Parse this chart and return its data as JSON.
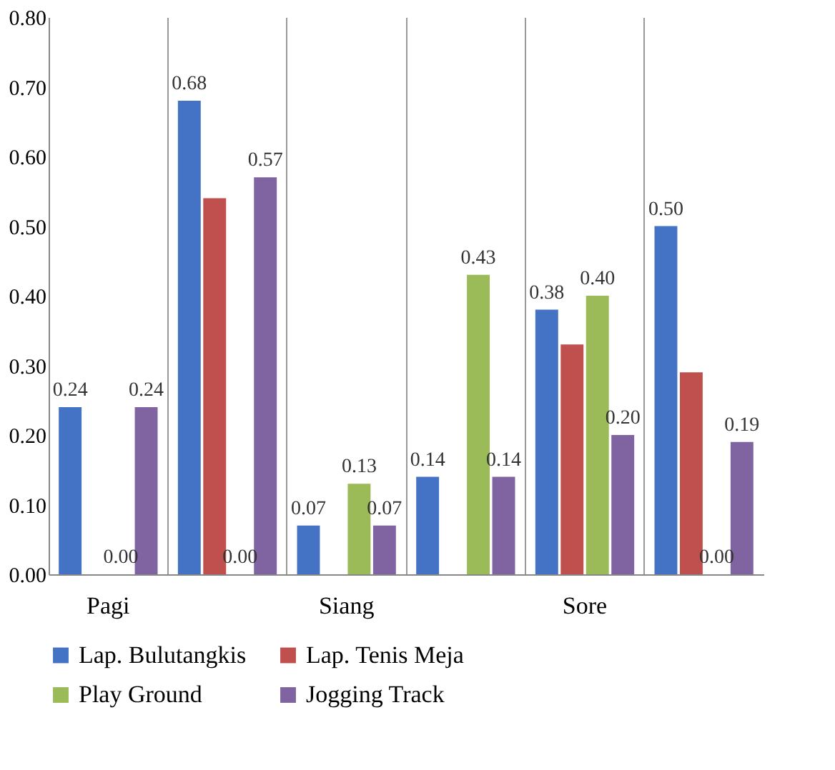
{
  "chart_data": {
    "type": "bar",
    "categories": [
      "Pagi",
      null,
      "Siang",
      null,
      "Sore",
      null
    ],
    "series": [
      {
        "name": "Lap. Bulutangkis",
        "color": "#4472c4",
        "values": [
          0.24,
          0.68,
          0.07,
          0.14,
          0.38,
          0.5
        ],
        "value_labels": [
          "0.24",
          "0.68",
          "0.07",
          "0.14",
          "0.38",
          "0.50"
        ]
      },
      {
        "name": "Lap. Tenis Meja",
        "color": "#c0504d",
        "values": [
          null,
          0.54,
          null,
          null,
          0.33,
          0.29
        ],
        "value_labels": [
          null,
          null,
          null,
          null,
          null,
          null
        ]
      },
      {
        "name": "Play Ground",
        "color": "#9bbb59",
        "values": [
          0.0,
          0.0,
          0.13,
          0.43,
          0.4,
          0.0
        ],
        "value_labels": [
          "0.00",
          "0.00",
          "0.13",
          "0.43",
          "0.40",
          "0.00"
        ]
      },
      {
        "name": "Jogging Track",
        "color": "#8064a2",
        "values": [
          0.24,
          0.57,
          0.07,
          0.14,
          0.2,
          0.19
        ],
        "value_labels": [
          "0.24",
          "0.57",
          "0.07",
          "0.14",
          "0.20",
          "0.19"
        ]
      }
    ],
    "ylim": [
      0,
      0.8
    ],
    "yticks": [
      {
        "value": 0,
        "label": "0.00"
      },
      {
        "value": 0.1,
        "label": "0.10"
      },
      {
        "value": 0.2,
        "label": "0.20"
      },
      {
        "value": 0.3,
        "label": "0.30"
      },
      {
        "value": 0.4,
        "label": "0.40"
      },
      {
        "value": 0.5,
        "label": "0.50"
      },
      {
        "value": 0.6,
        "label": "0.60"
      },
      {
        "value": 0.7,
        "label": "0.70"
      },
      {
        "value": 0.8,
        "label": "0.80"
      }
    ],
    "grid": "x",
    "legend": "bottom"
  }
}
